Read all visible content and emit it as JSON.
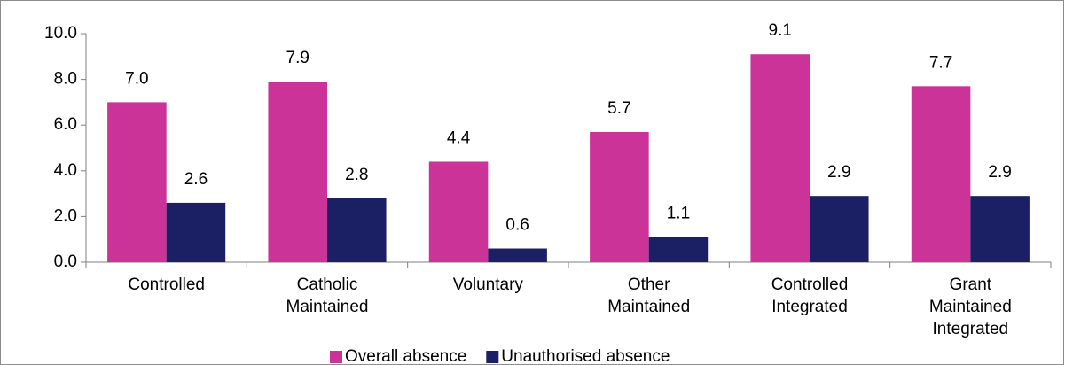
{
  "chart_data": {
    "type": "bar",
    "categories": [
      [
        "Controlled"
      ],
      [
        "Catholic",
        "Maintained"
      ],
      [
        "Voluntary"
      ],
      [
        "Other",
        "Maintained"
      ],
      [
        "Controlled",
        "Integrated"
      ],
      [
        "Grant",
        "Maintained",
        "Integrated"
      ]
    ],
    "series": [
      {
        "name": "Overall absence",
        "color": "#cc3399",
        "values": [
          7.0,
          7.9,
          4.4,
          5.7,
          9.1,
          7.7
        ],
        "value_labels": [
          "7.0",
          "7.9",
          "4.4",
          "5.7",
          "9.1",
          "7.7"
        ]
      },
      {
        "name": "Unauthorised absence",
        "color": "#1b1f63",
        "values": [
          2.6,
          2.8,
          0.6,
          1.1,
          2.9,
          2.9
        ],
        "value_labels": [
          "2.6",
          "2.8",
          "0.6",
          "1.1",
          "2.9",
          "2.9"
        ]
      }
    ],
    "ylim": [
      0,
      10
    ],
    "yticks": [
      {
        "value": 0,
        "label": "0.0"
      },
      {
        "value": 2,
        "label": "2.0"
      },
      {
        "value": 4,
        "label": "4.0"
      },
      {
        "value": 6,
        "label": "6.0"
      },
      {
        "value": 8,
        "label": "8.0"
      },
      {
        "value": 10,
        "label": "10.0"
      }
    ],
    "legend": "bottom"
  }
}
